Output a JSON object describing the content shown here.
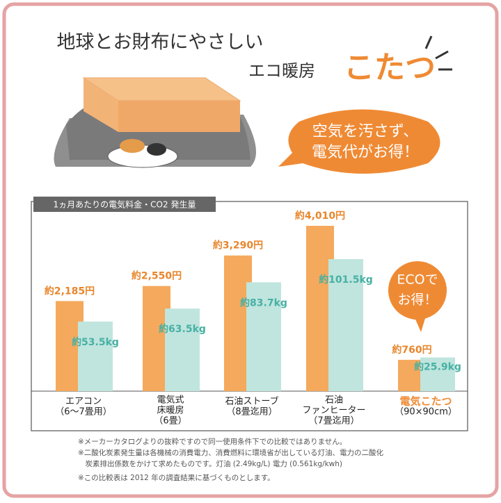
{
  "header": {
    "line1": "地球とお財布にやさしい",
    "line2": "エコ暖房",
    "highlight": "こたつ"
  },
  "bubble": {
    "lines": [
      "空気を汚さず、",
      "電気代がお得！"
    ]
  },
  "badge": {
    "lines": [
      "ECOで",
      "お得！"
    ]
  },
  "chart_data": {
    "type": "bar",
    "title": "1ヵ月あたりの電気料金・CO2 発生量",
    "categories": [
      [
        "エアコン",
        "（6～7畳用）"
      ],
      [
        "電気式",
        "床暖房",
        "（6畳）"
      ],
      [
        "石油ストーブ",
        "（8畳迄用）"
      ],
      [
        "石油",
        "ファンヒーター",
        "（7畳迄用）"
      ],
      [
        "電気こたつ",
        "（90×90cm）"
      ]
    ],
    "highlight": 4,
    "highlight_color": "#ef8a34",
    "series": [
      {
        "color": "#f5a95c",
        "label_color": "#e8862c",
        "values": [
          2185,
          2550,
          3290,
          4010,
          760
        ],
        "value_labels": [
          "約2,185円",
          "約2,550円",
          "約3,290円",
          "約4,010円",
          "約760円"
        ]
      },
      {
        "color": "#bfe5de",
        "label_color": "#47b0a3",
        "values": [
          53.5,
          63.5,
          83.7,
          101.5,
          25.9
        ],
        "value_labels": [
          "約53.5kg",
          "約63.5kg",
          "約83.7kg",
          "約101.5kg",
          "約25.9kg"
        ]
      }
    ]
  },
  "notes": [
    "※メーカーカタログよりの抜粋ですので同一使用条件下での比較ではありません。",
    "※二酸化炭素発生量は各機械の消費電力、消費燃料に環境省が出している灯油、電力の二酸化",
    "　炭素排出係数をかけて求めたものです。灯油 (2.49kg/L) 電力 (0.561kg/kwh)",
    "※この比較表は 2012 年の調査結果に基づくものとします。"
  ]
}
